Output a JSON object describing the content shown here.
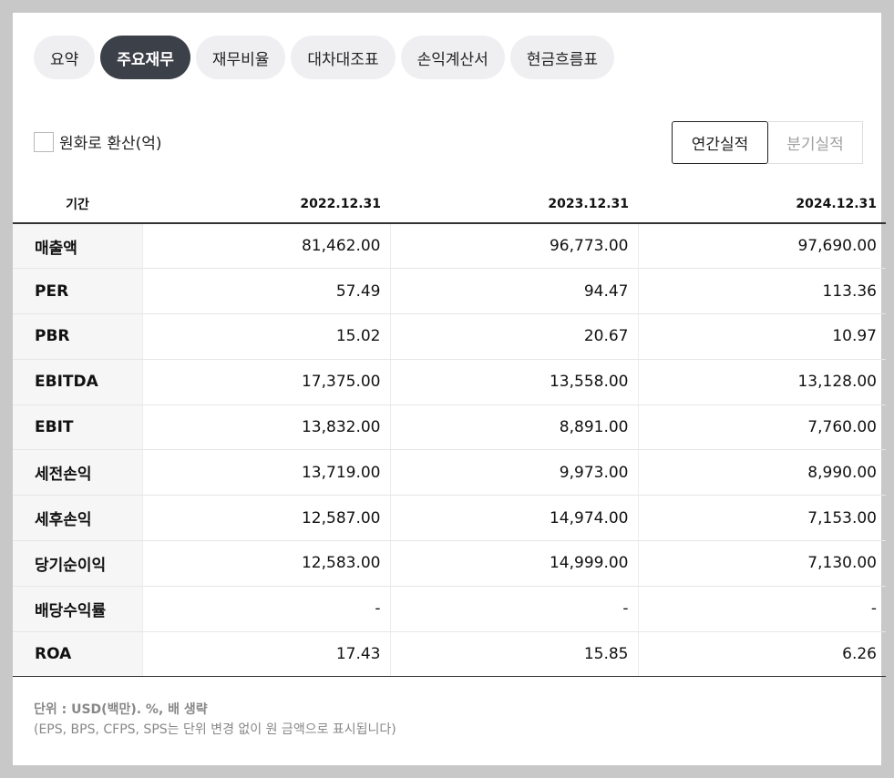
{
  "tabs": [
    {
      "label": "요약"
    },
    {
      "label": "주요재무"
    },
    {
      "label": "재무비율"
    },
    {
      "label": "대차대조표"
    },
    {
      "label": "손익계산서"
    },
    {
      "label": "현금흐름표"
    }
  ],
  "active_tab_index": 1,
  "convert_currency": {
    "label": "원화로 환산(억)",
    "checked": false
  },
  "period_toggle": {
    "annual": "연간실적",
    "quarterly": "분기실적",
    "selected": "annual"
  },
  "table": {
    "header": {
      "period": "기간",
      "col1": "2022.12.31",
      "col2": "2023.12.31",
      "col3": "2024.12.31"
    },
    "rows": [
      {
        "label": "매출액",
        "v1": "81,462.00",
        "v2": "96,773.00",
        "v3": "97,690.00"
      },
      {
        "label": "PER",
        "v1": "57.49",
        "v2": "94.47",
        "v3": "113.36"
      },
      {
        "label": "PBR",
        "v1": "15.02",
        "v2": "20.67",
        "v3": "10.97"
      },
      {
        "label": "EBITDA",
        "v1": "17,375.00",
        "v2": "13,558.00",
        "v3": "13,128.00"
      },
      {
        "label": "EBIT",
        "v1": "13,832.00",
        "v2": "8,891.00",
        "v3": "7,760.00"
      },
      {
        "label": "세전손익",
        "v1": "13,719.00",
        "v2": "9,973.00",
        "v3": "8,990.00"
      },
      {
        "label": "세후손익",
        "v1": "12,587.00",
        "v2": "14,974.00",
        "v3": "7,153.00"
      },
      {
        "label": "당기순이익",
        "v1": "12,583.00",
        "v2": "14,999.00",
        "v3": "7,130.00"
      },
      {
        "label": "배당수익률",
        "v1": "-",
        "v2": "-",
        "v3": "-"
      },
      {
        "label": "ROA",
        "v1": "17.43",
        "v2": "15.85",
        "v3": "6.26"
      }
    ]
  },
  "footnote": {
    "unit_line": "단위 : USD(백만). %, 배 생략",
    "note_line": "(EPS, BPS, CFPS, SPS는 단위 변경 없이 원 금액으로 표시됩니다)"
  },
  "colors": {
    "active_tab_bg": "#3c4048",
    "inactive_tab_bg": "#efeff1",
    "outer_bg": "#c8c8c8",
    "label_col_bg": "#f6f6f7"
  }
}
